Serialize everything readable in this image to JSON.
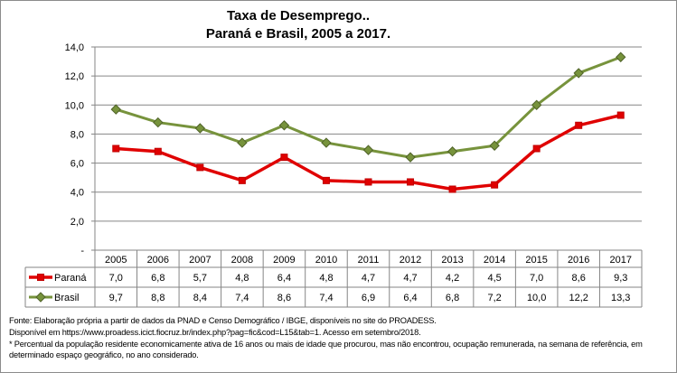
{
  "chart_data": {
    "type": "line",
    "title": [
      "Taxa de Desemprego..",
      "Paraná e Brasil, 2005 a 2017."
    ],
    "xlabel": "",
    "ylabel": "",
    "categories": [
      "2005",
      "2006",
      "2007",
      "2008",
      "2009",
      "2010",
      "2011",
      "2012",
      "2013",
      "2014",
      "2015",
      "2016",
      "2017"
    ],
    "series": [
      {
        "name": "Paraná",
        "color": "#e00000",
        "marker": "square",
        "values": [
          7.0,
          6.8,
          5.7,
          4.8,
          6.4,
          4.8,
          4.7,
          4.7,
          4.2,
          4.5,
          7.0,
          8.6,
          9.3
        ],
        "labels": [
          "7,0",
          "6,8",
          "5,7",
          "4,8",
          "6,4",
          "4,8",
          "4,7",
          "4,7",
          "4,2",
          "4,5",
          "7,0",
          "8,6",
          "9,3"
        ]
      },
      {
        "name": "Brasil",
        "color": "#77933c",
        "marker": "diamond",
        "values": [
          9.7,
          8.8,
          8.4,
          7.4,
          8.6,
          7.4,
          6.9,
          6.4,
          6.8,
          7.2,
          10.0,
          12.2,
          13.3
        ],
        "labels": [
          "9,7",
          "8,8",
          "8,4",
          "7,4",
          "8,6",
          "7,4",
          "6,9",
          "6,4",
          "6,8",
          "7,2",
          "10,0",
          "12,2",
          "13,3"
        ]
      }
    ],
    "ylim": [
      0,
      14
    ],
    "yticks": [
      0,
      2,
      4,
      6,
      8,
      10,
      12,
      14
    ],
    "ytick_labels": [
      "-",
      "2,0",
      "4,0",
      "6,0",
      "8,0",
      "10,0",
      "12,0",
      "14,0"
    ],
    "grid": true,
    "legend": "data-table"
  },
  "notes": [
    "Fonte: Elaboração própria a partir de dados da PNAD e Censo Demográfico / IBGE, disponíveis no site do PROADESS.",
    "Disponível em https://www.proadess.icict.fiocruz.br/index.php?pag=fic&cod=L15&tab=1. Acesso em  setembro/2018.",
    "* Percentual da população residente economicamente ativa de 16 anos ou mais de idade que procurou, mas não encontrou, ocupação remunerada, na semana de referência, em determinado espaço geográfico, no ano considerado."
  ]
}
